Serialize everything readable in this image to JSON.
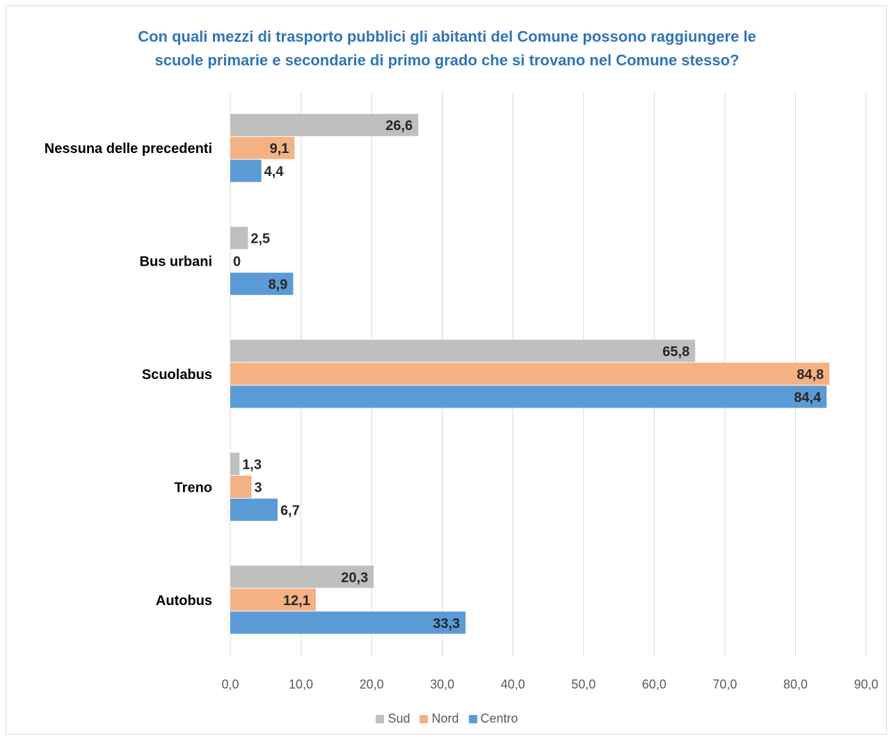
{
  "chart_data": {
    "type": "bar",
    "orientation": "horizontal",
    "title_lines": [
      "Con quali mezzi di trasporto pubblici gli abitanti del Comune possono raggiungere le",
      "scuole primarie e secondarie di primo grado che si trovano nel Comune stesso?"
    ],
    "categories": [
      "Nessuna delle precedenti",
      "Bus urbani",
      "Scuolabus",
      "Treno",
      "Autobus"
    ],
    "series": [
      {
        "name": "Sud",
        "color": "#bfbfbf",
        "values": [
          26.6,
          2.5,
          65.8,
          1.3,
          20.3
        ],
        "labels": [
          "26,6",
          "2,5",
          "65,8",
          "1,3",
          "20,3"
        ]
      },
      {
        "name": "Nord",
        "color": "#f4b183",
        "values": [
          9.1,
          0,
          84.8,
          3,
          12.1
        ],
        "labels": [
          "9,1",
          "0",
          "84,8",
          "3",
          "12,1"
        ]
      },
      {
        "name": "Centro",
        "color": "#5b9bd5",
        "values": [
          4.4,
          8.9,
          84.4,
          6.7,
          33.3
        ],
        "labels": [
          "4,4",
          "8,9",
          "84,4",
          "6,7",
          "33,3"
        ]
      }
    ],
    "xlim": [
      0,
      90
    ],
    "xticks": [
      0,
      10,
      20,
      30,
      40,
      50,
      60,
      70,
      80,
      90
    ],
    "xtick_labels": [
      "0,0",
      "10,0",
      "20,0",
      "30,0",
      "40,0",
      "50,0",
      "60,0",
      "70,0",
      "80,0",
      "90,0"
    ],
    "grid": true,
    "legend_position": "bottom"
  }
}
